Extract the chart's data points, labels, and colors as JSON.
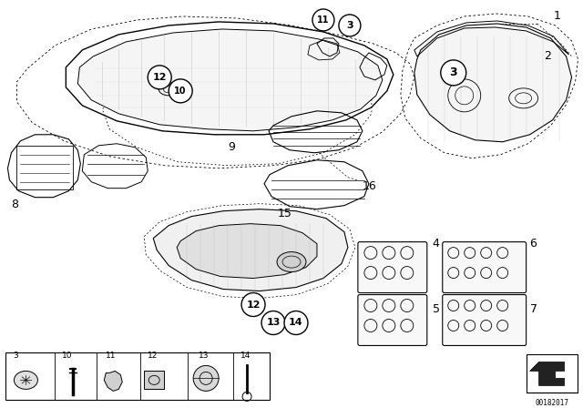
{
  "background_color": "#ffffff",
  "figure_width": 6.4,
  "figure_height": 4.48,
  "dpi": 100,
  "doc_number": "00182017",
  "line_color": "#000000",
  "circle_fill": "#ffffff",
  "gray_fill": "#e8e8e8"
}
